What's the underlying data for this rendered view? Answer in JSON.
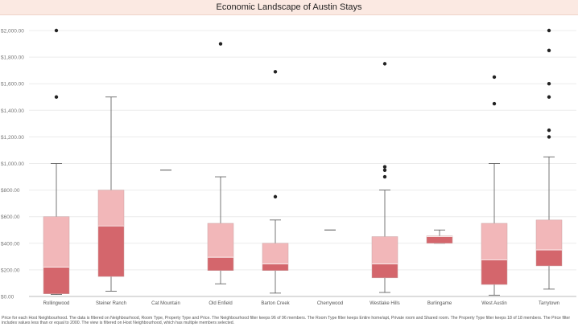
{
  "chart_data": {
    "type": "boxplot",
    "title": "Economic Landscape of Austin Stays",
    "ylim": [
      0,
      2050
    ],
    "yticks": [
      "$0.00",
      "$200.00",
      "$400.00",
      "$600.00",
      "$800.00",
      "$1,000.00",
      "$1,200.00",
      "$1,400.00",
      "$1,600.00",
      "$1,800.00",
      "$2,000.00"
    ],
    "ytick_values": [
      0,
      200,
      400,
      600,
      800,
      1000,
      1200,
      1400,
      1600,
      1800,
      2000
    ],
    "grid": true,
    "colors": {
      "lower_box": "#d4666c",
      "upper_box": "#f2b7b9",
      "whisker": "#555555",
      "outlier": "#222222"
    },
    "categories": [
      {
        "name": "Rollingwood",
        "min": 15,
        "q1": 20,
        "median": 220,
        "q3": 600,
        "max": 1000,
        "outliers": [
          1500,
          2000
        ]
      },
      {
        "name": "Steiner Ranch",
        "min": 40,
        "q1": 150,
        "median": 530,
        "q3": 800,
        "max": 1500,
        "outliers": []
      },
      {
        "name": "Cat Mountain",
        "min": 950,
        "q1": 950,
        "median": 950,
        "q3": 950,
        "max": 950,
        "outliers": []
      },
      {
        "name": "Old Enfield",
        "min": 95,
        "q1": 195,
        "median": 295,
        "q3": 550,
        "max": 900,
        "outliers": [
          1900
        ]
      },
      {
        "name": "Barton Creek",
        "min": 25,
        "q1": 195,
        "median": 245,
        "q3": 400,
        "max": 575,
        "outliers": [
          750,
          1690
        ]
      },
      {
        "name": "Cherrywood",
        "min": 500,
        "q1": 500,
        "median": 500,
        "q3": 500,
        "max": 500,
        "outliers": []
      },
      {
        "name": "Westlake Hills",
        "min": 30,
        "q1": 140,
        "median": 245,
        "q3": 450,
        "max": 800,
        "outliers": [
          900,
          950,
          975,
          1750
        ]
      },
      {
        "name": "Burlingame",
        "min": 400,
        "q1": 400,
        "median": 450,
        "q3": 455,
        "max": 500,
        "outliers": []
      },
      {
        "name": "West Austin",
        "min": 10,
        "q1": 90,
        "median": 275,
        "q3": 550,
        "max": 1000,
        "outliers": [
          1450,
          1650
        ]
      },
      {
        "name": "Tarrytown",
        "min": 55,
        "q1": 230,
        "median": 350,
        "q3": 575,
        "max": 1050,
        "outliers": [
          1200,
          1250,
          1500,
          1600,
          1850,
          2000
        ]
      }
    ]
  },
  "caption": "Price for each Host Neighbourhood. The data is filtered on Neighbourhood, Room Type, Property Type and Price. The Neighbourhood filter keeps 96 of 96 members. The Room Type filter keeps Entire home/apt, Private room and Shared room. The Property Type filter keeps 18 of 18 members. The Price filter includes values less than or equal to 2000. The view is filtered on Host Neighbourhood, which has multiple members selected."
}
